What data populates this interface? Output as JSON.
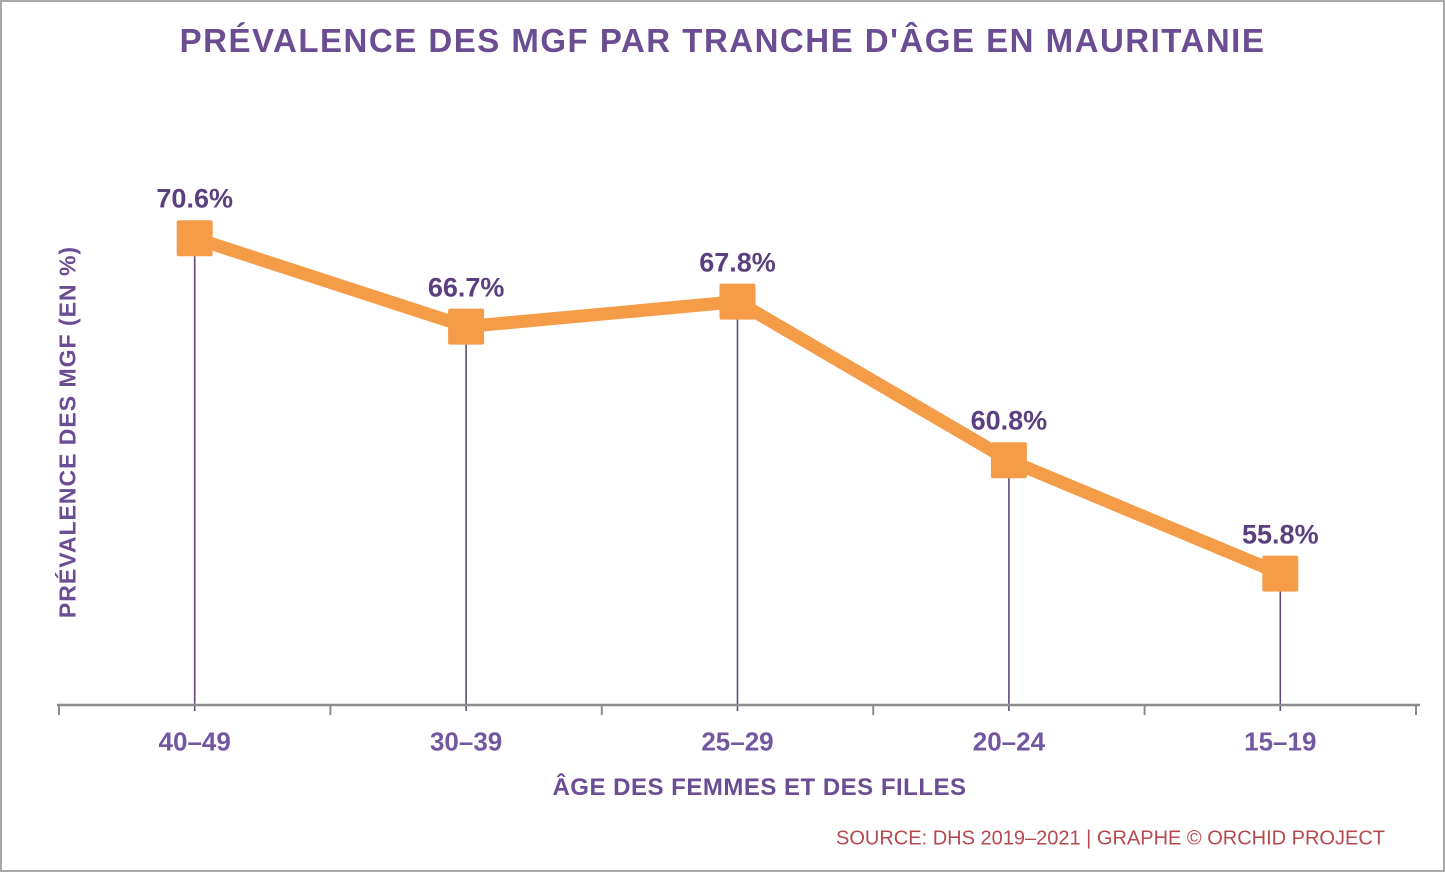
{
  "title": "PRÉVALENCE DES MGF PAR TRANCHE D'ÂGE EN MAURITANIE",
  "source_note": "SOURCE: DHS 2019–2021 | GRAPHE © ORCHID PROJECT",
  "colors": {
    "line": "#f59c49",
    "marker": "#f59c49",
    "title_text": "#6a4d92",
    "data_label_text": "#5b4080",
    "category_label_text": "#7258a0",
    "drop_line": "#604a7b",
    "axis_line": "#8c8c8c",
    "source_text": "#b5494f",
    "frame_border": "#a9a9a9"
  },
  "chart_data": {
    "type": "line",
    "title": "PRÉVALENCE DES MGF PAR TRANCHE D'ÂGE EN MAURITANIE",
    "xlabel": "ÂGE DES FEMMES ET DES FILLES",
    "ylabel": "PRÉVALENCE DES MGF (EN %)",
    "categories": [
      "40–49",
      "30–39",
      "25–29",
      "20–24",
      "15–19"
    ],
    "values": [
      70.6,
      66.7,
      67.8,
      60.8,
      55.8
    ],
    "labels": [
      "70.6%",
      "66.7%",
      "67.8%",
      "60.8%",
      "55.8%"
    ],
    "ylim": [
      50,
      75
    ],
    "marker": "square",
    "grid": false,
    "legend": false,
    "drop_lines": true,
    "source": "DHS 2019–2021"
  }
}
